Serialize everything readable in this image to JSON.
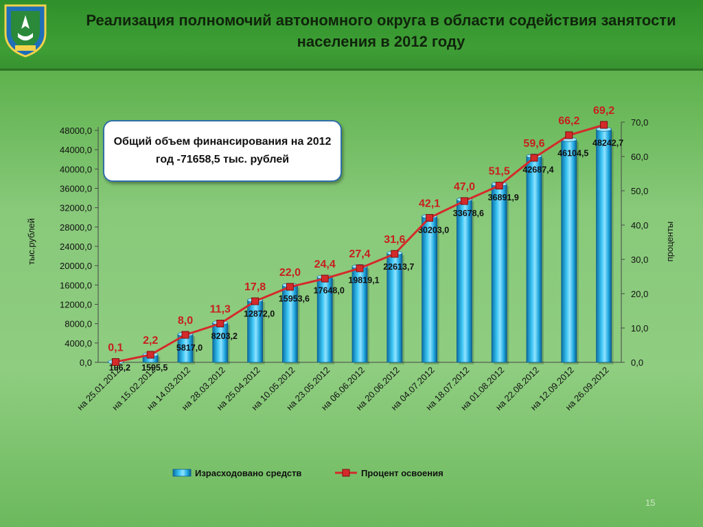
{
  "slide": {
    "title_line1": "Реализация полномочий автономного округа в области содействия занятости",
    "title_line2": "населения в 2012 году",
    "note": "Общий объем финансирования на 2012 год -71658,5 тыс. рублей",
    "page_number": "15"
  },
  "chart_data": {
    "type": "bar",
    "categories": [
      "на 25.01.2012",
      "на 15.02.2012",
      "на 14.03.2012",
      "на 28.03.2012",
      "на 25.04.2012",
      "на 10.05.2012",
      "на 23.05.2012",
      "на 06.06.2012",
      "на 20.06.2012",
      "на 04.07.2012",
      "на 18.07.2012",
      "на 01.08.2012",
      "на 22.08.2012",
      "на 12.09.2012",
      "на 26.09.2012"
    ],
    "series": [
      {
        "name": "Израсходовано  средств",
        "type": "bar",
        "axis": "left",
        "values": [
          106.2,
          1595.5,
          5817.0,
          8203.2,
          12872.0,
          15953.6,
          17648.0,
          19819.1,
          22613.7,
          30203.0,
          33678.6,
          36891.9,
          42687.4,
          46104.5,
          48242.7
        ],
        "labels": [
          "106,2",
          "1595,5",
          "5817,0",
          "8203,2",
          "12872,0",
          "15953,6",
          "17648,0",
          "19819,1",
          "22613,7",
          "30203,0",
          "33678,6",
          "36891,9",
          "42687,4",
          "46104,5",
          "48242,7"
        ],
        "color": "#1fa8e0"
      },
      {
        "name": "Процент освоения",
        "type": "line",
        "axis": "right",
        "values": [
          0.1,
          2.2,
          8.0,
          11.3,
          17.8,
          22.0,
          24.4,
          27.4,
          31.6,
          42.1,
          47.0,
          51.5,
          59.6,
          66.2,
          69.2
        ],
        "labels": [
          "0,1",
          "2,2",
          "8,0",
          "11,3",
          "17,8",
          "22,0",
          "24,4",
          "27,4",
          "31,6",
          "42,1",
          "47,0",
          "51,5",
          "59,6",
          "66,2",
          "69,2"
        ],
        "color": "#d42a2a"
      }
    ],
    "ylabel": "тыс.рублей",
    "y2label": "проценты",
    "ylim": [
      0,
      48000
    ],
    "y2lim": [
      0,
      70
    ],
    "yticks": [
      "0,0",
      "4000,0",
      "8000,0",
      "12000,0",
      "16000,0",
      "20000,0",
      "24000,0",
      "28000,0",
      "32000,0",
      "36000,0",
      "40000,0",
      "44000,0",
      "48000,0"
    ],
    "y2ticks": [
      "0,0",
      "10,0",
      "20,0",
      "30,0",
      "40,0",
      "50,0",
      "60,0",
      "70,0"
    ],
    "legend_position": "bottom",
    "grid": false
  }
}
